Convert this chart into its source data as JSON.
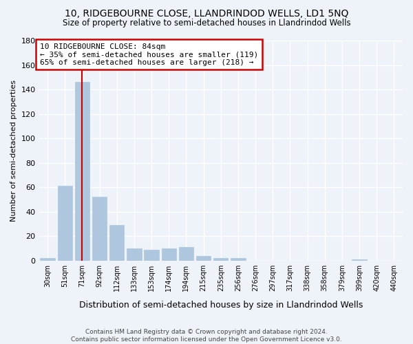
{
  "title": "10, RIDGEBOURNE CLOSE, LLANDRINDOD WELLS, LD1 5NQ",
  "subtitle": "Size of property relative to semi-detached houses in Llandrindod Wells",
  "xlabel": "Distribution of semi-detached houses by size in Llandrindod Wells",
  "ylabel": "Number of semi-detached properties",
  "footer": "Contains HM Land Registry data © Crown copyright and database right 2024.\nContains public sector information licensed under the Open Government Licence v3.0.",
  "categories": [
    "30sqm",
    "51sqm",
    "71sqm",
    "92sqm",
    "112sqm",
    "133sqm",
    "153sqm",
    "174sqm",
    "194sqm",
    "215sqm",
    "235sqm",
    "256sqm",
    "276sqm",
    "297sqm",
    "317sqm",
    "338sqm",
    "358sqm",
    "379sqm",
    "399sqm",
    "420sqm",
    "440sqm"
  ],
  "values": [
    2,
    61,
    146,
    52,
    29,
    10,
    9,
    10,
    11,
    4,
    2,
    2,
    0,
    0,
    0,
    0,
    0,
    0,
    1,
    0,
    0
  ],
  "bar_color": "#aec6de",
  "bar_edge_color": "#aec6de",
  "background_color": "#eef2f9",
  "grid_color": "#ffffff",
  "vline_x": 2,
  "vline_color": "#cc0000",
  "annotation_text": "10 RIDGEBOURNE CLOSE: 84sqm\n← 35% of semi-detached houses are smaller (119)\n65% of semi-detached houses are larger (218) →",
  "annotation_box_color": "#cc0000",
  "ylim": [
    0,
    180
  ],
  "yticks": [
    0,
    20,
    40,
    60,
    80,
    100,
    120,
    140,
    160,
    180
  ]
}
